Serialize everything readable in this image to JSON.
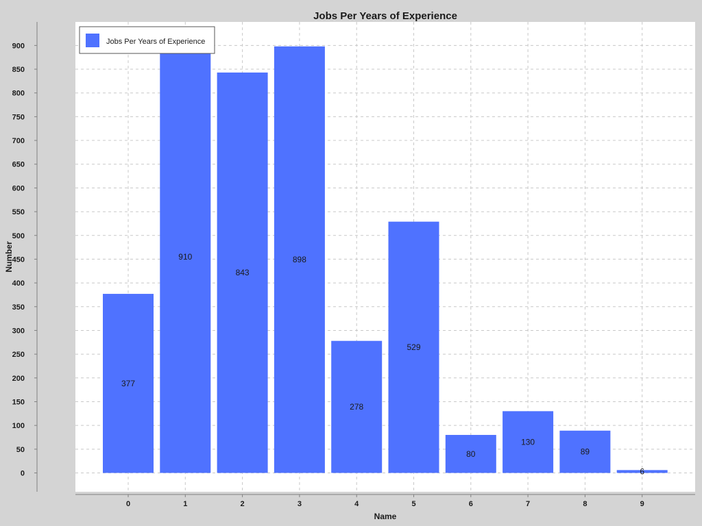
{
  "chart_data": {
    "type": "bar",
    "title": "Jobs Per Years of Experience",
    "xlabel": "Name",
    "ylabel": "Number",
    "categories": [
      "0",
      "1",
      "2",
      "3",
      "4",
      "5",
      "6",
      "7",
      "8",
      "9"
    ],
    "series": [
      {
        "name": "Jobs Per Years of Experience",
        "values": [
          377,
          910,
          843,
          898,
          278,
          529,
          80,
          130,
          89,
          6
        ],
        "color": "#4f72ff"
      }
    ],
    "ylim": [
      -40,
      950
    ],
    "yticks": [
      0,
      50,
      100,
      150,
      200,
      250,
      300,
      350,
      400,
      450,
      500,
      550,
      600,
      650,
      700,
      750,
      800,
      850,
      900
    ],
    "grid": true,
    "legend_position": "top-left"
  }
}
